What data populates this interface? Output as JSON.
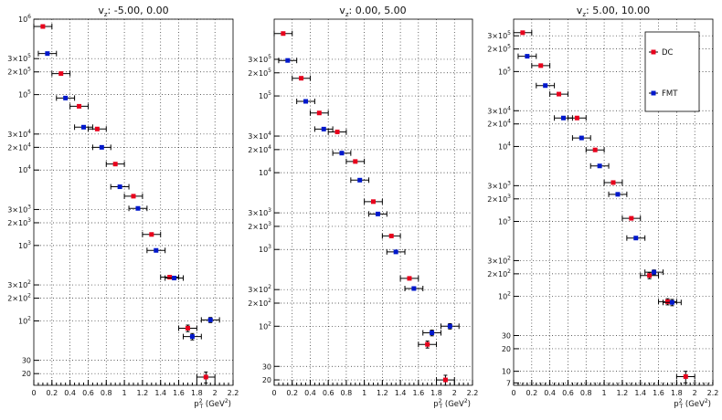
{
  "chart_data": [
    {
      "type": "scatter",
      "title": "vₓ:   -5.00,   0.00",
      "title_main": "v",
      "title_sub": "z",
      "title_rest": ":   -5.00,   0.00",
      "xlabel_main": "p",
      "xlabel_sup": "2",
      "xlabel_sub": "T",
      "xlabel_rest": " (GeV",
      "xlabel_rest_sup": "2",
      "xlabel_close": ")",
      "xlim": [
        0,
        2.2
      ],
      "ylim": [
        14,
        1000000
      ],
      "log_y": true,
      "grid": true,
      "x_ticks": [
        "0",
        "0.2",
        "0.4",
        "0.6",
        "0.8",
        "1",
        "1.2",
        "1.4",
        "1.6",
        "1.8",
        "2",
        "2.2"
      ],
      "y_ticks": [
        {
          "value": 1000000,
          "label": "10",
          "exp": "6"
        },
        {
          "value": 300000,
          "label": "3×10",
          "exp": "5"
        },
        {
          "value": 200000,
          "label": "2×10",
          "exp": "5"
        },
        {
          "value": 100000,
          "label": "10",
          "exp": "5"
        },
        {
          "value": 30000,
          "label": "3×10",
          "exp": "4"
        },
        {
          "value": 20000,
          "label": "2×10",
          "exp": "4"
        },
        {
          "value": 10000,
          "label": "10",
          "exp": "4"
        },
        {
          "value": 3000,
          "label": "3×10",
          "exp": "3"
        },
        {
          "value": 2000,
          "label": "2×10",
          "exp": "3"
        },
        {
          "value": 1000,
          "label": "10",
          "exp": "3"
        },
        {
          "value": 300,
          "label": "3×10",
          "exp": "2"
        },
        {
          "value": 200,
          "label": "2×10",
          "exp": "2"
        },
        {
          "value": 100,
          "label": "10",
          "exp": "2"
        },
        {
          "value": 30,
          "label": "30",
          "exp": ""
        },
        {
          "value": 20,
          "label": "20",
          "exp": ""
        }
      ],
      "series": [
        {
          "name": "DC",
          "color": "#e8001c",
          "x": [
            0.1,
            0.3,
            0.5,
            0.7,
            0.9,
            1.1,
            1.3,
            1.5,
            1.7,
            1.9
          ],
          "xerr": 0.1,
          "y": [
            800000,
            190000,
            70000,
            35000,
            12000,
            4500,
            1400,
            380,
            80,
            18
          ],
          "yerr": [
            0,
            0,
            0,
            0,
            0,
            0,
            0,
            0,
            8,
            3
          ]
        },
        {
          "name": "FMT",
          "color": "#0018cc",
          "x": [
            0.15,
            0.35,
            0.55,
            0.75,
            0.95,
            1.15,
            1.35,
            1.55,
            1.75,
            1.95
          ],
          "xerr": 0.1,
          "y": [
            350000,
            90000,
            37000,
            20000,
            6000,
            3100,
            860,
            370,
            62,
            103
          ],
          "yerr": [
            0,
            0,
            0,
            0,
            0,
            0,
            0,
            0,
            6,
            8
          ]
        }
      ]
    },
    {
      "type": "scatter",
      "title": "vₓ:   0.00,   5.00",
      "title_main": "v",
      "title_sub": "z",
      "title_rest": ":   0.00,   5.00",
      "xlabel_main": "p",
      "xlabel_sup": "2",
      "xlabel_sub": "T",
      "xlabel_rest": " (GeV",
      "xlabel_rest_sup": "2",
      "xlabel_close": ")",
      "xlim": [
        0,
        2.2
      ],
      "ylim": [
        17,
        1000000
      ],
      "log_y": true,
      "grid": true,
      "x_ticks": [
        "0",
        "0.2",
        "0.4",
        "0.6",
        "0.8",
        "1",
        "1.2",
        "1.4",
        "1.6",
        "1.8",
        "2",
        "2.2"
      ],
      "y_ticks": [
        {
          "value": 300000,
          "label": "3×10",
          "exp": "5"
        },
        {
          "value": 200000,
          "label": "2×10",
          "exp": "5"
        },
        {
          "value": 100000,
          "label": "10",
          "exp": "5"
        },
        {
          "value": 30000,
          "label": "3×10",
          "exp": "4"
        },
        {
          "value": 20000,
          "label": "2×10",
          "exp": "4"
        },
        {
          "value": 10000,
          "label": "10",
          "exp": "4"
        },
        {
          "value": 3000,
          "label": "3×10",
          "exp": "3"
        },
        {
          "value": 2000,
          "label": "2×10",
          "exp": "3"
        },
        {
          "value": 1000,
          "label": "10",
          "exp": "3"
        },
        {
          "value": 300,
          "label": "3×10",
          "exp": "2"
        },
        {
          "value": 200,
          "label": "2×10",
          "exp": "2"
        },
        {
          "value": 100,
          "label": "10",
          "exp": "2"
        },
        {
          "value": 30,
          "label": "30",
          "exp": ""
        },
        {
          "value": 20,
          "label": "20",
          "exp": ""
        }
      ],
      "series": [
        {
          "name": "DC",
          "color": "#e8001c",
          "x": [
            0.1,
            0.3,
            0.5,
            0.7,
            0.9,
            1.1,
            1.3,
            1.5,
            1.7,
            1.9
          ],
          "xerr": 0.1,
          "y": [
            650000,
            170000,
            60000,
            34000,
            14000,
            4200,
            1500,
            420,
            58,
            20
          ],
          "yerr": [
            0,
            0,
            0,
            0,
            0,
            0,
            0,
            0,
            6,
            3
          ]
        },
        {
          "name": "FMT",
          "color": "#0018cc",
          "x": [
            0.15,
            0.35,
            0.55,
            0.75,
            0.95,
            1.15,
            1.35,
            1.55,
            1.75,
            1.95
          ],
          "xerr": 0.1,
          "y": [
            290000,
            85000,
            37000,
            18000,
            8000,
            2900,
            930,
            310,
            82,
            100
          ],
          "yerr": [
            0,
            0,
            0,
            0,
            0,
            0,
            0,
            0,
            7,
            8
          ]
        }
      ]
    },
    {
      "type": "scatter",
      "title": "vₓ:   5.00,   10.00",
      "title_main": "v",
      "title_sub": "z",
      "title_rest": ":   5.00,   10.00",
      "xlabel_main": "p",
      "xlabel_sup": "2",
      "xlabel_sub": "T",
      "xlabel_rest": " (GeV",
      "xlabel_rest_sup": "2",
      "xlabel_close": ")",
      "xlim": [
        0,
        2.2
      ],
      "ylim": [
        6.5,
        500000
      ],
      "log_y": true,
      "grid": true,
      "x_ticks": [
        "0",
        "0.2",
        "0.4",
        "0.6",
        "0.8",
        "1",
        "1.2",
        "1.4",
        "1.6",
        "1.8",
        "2",
        "2.2"
      ],
      "y_ticks": [
        {
          "value": 300000,
          "label": "3×10",
          "exp": "5"
        },
        {
          "value": 200000,
          "label": "2×10",
          "exp": "5"
        },
        {
          "value": 100000,
          "label": "10",
          "exp": "5"
        },
        {
          "value": 30000,
          "label": "3×10",
          "exp": "4"
        },
        {
          "value": 20000,
          "label": "2×10",
          "exp": "4"
        },
        {
          "value": 10000,
          "label": "10",
          "exp": "4"
        },
        {
          "value": 3000,
          "label": "3×10",
          "exp": "3"
        },
        {
          "value": 2000,
          "label": "2×10",
          "exp": "3"
        },
        {
          "value": 1000,
          "label": "10",
          "exp": "3"
        },
        {
          "value": 300,
          "label": "3×10",
          "exp": "2"
        },
        {
          "value": 200,
          "label": "2×10",
          "exp": "2"
        },
        {
          "value": 100,
          "label": "10",
          "exp": "2"
        },
        {
          "value": 30,
          "label": "30",
          "exp": ""
        },
        {
          "value": 20,
          "label": "20",
          "exp": ""
        },
        {
          "value": 10,
          "label": "10",
          "exp": ""
        },
        {
          "value": 7,
          "label": "7",
          "exp": ""
        }
      ],
      "legend": {
        "position": "top-right",
        "entries": [
          "DC",
          "FMT"
        ]
      },
      "series": [
        {
          "name": "DC",
          "color": "#e8001c",
          "x": [
            0.1,
            0.3,
            0.5,
            0.7,
            0.9,
            1.1,
            1.3,
            1.5,
            1.7,
            1.9
          ],
          "xerr": 0.1,
          "y": [
            330000,
            120000,
            50000,
            24000,
            9000,
            3300,
            1100,
            190,
            85,
            8.5
          ],
          "yerr": [
            0,
            0,
            0,
            0,
            0,
            0,
            0,
            18,
            8,
            1.5
          ]
        },
        {
          "name": "FMT",
          "color": "#0018cc",
          "x": [
            0.15,
            0.35,
            0.55,
            0.75,
            0.95,
            1.15,
            1.35,
            1.55,
            1.75,
            1.95
          ],
          "xerr": 0.1,
          "y": [
            160000,
            65000,
            24000,
            13000,
            5500,
            2300,
            600,
            210,
            83,
            null
          ],
          "yerr": [
            0,
            0,
            0,
            0,
            0,
            0,
            0,
            15,
            8,
            0
          ]
        }
      ]
    }
  ]
}
